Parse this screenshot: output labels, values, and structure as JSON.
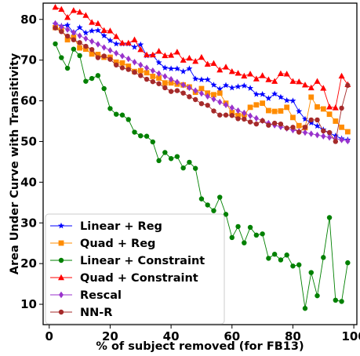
{
  "chart_data": {
    "type": "line",
    "title": "",
    "xlabel": "% of subject removed (for FB13)",
    "ylabel": "Area Under Curve with Transitivity",
    "xlim": [
      -2,
      101
    ],
    "ylim": [
      5,
      84
    ],
    "xticks": [
      "0",
      "20",
      "40",
      "60",
      "80",
      "100"
    ],
    "xtick_values": [
      0,
      20,
      40,
      60,
      80,
      100
    ],
    "yticks": [
      "10",
      "20",
      "30",
      "40",
      "50",
      "60",
      "70",
      "80"
    ],
    "ytick_values": [
      10,
      20,
      30,
      40,
      50,
      60,
      70,
      80
    ],
    "grid": false,
    "legend_position": "lower-left",
    "x": [
      2,
      4,
      6,
      8,
      10,
      12,
      14,
      16,
      18,
      20,
      22,
      24,
      26,
      28,
      30,
      32,
      34,
      36,
      38,
      40,
      42,
      44,
      46,
      48,
      50,
      52,
      54,
      56,
      58,
      60,
      62,
      64,
      66,
      68,
      70,
      72,
      74,
      76,
      78,
      80,
      82,
      84,
      86,
      88,
      90,
      92,
      94,
      96,
      98
    ],
    "series": [
      {
        "name": "Linear + Reg",
        "color": "#0000ff",
        "marker": "star",
        "values": [
          78.9,
          78.4,
          78.6,
          76.7,
          78.0,
          76.7,
          77.2,
          77.3,
          76.0,
          74.8,
          74.0,
          74.0,
          74.0,
          73.2,
          73.8,
          71.1,
          71.2,
          69.4,
          68.1,
          67.9,
          67.9,
          67.2,
          67.9,
          65.4,
          65.2,
          65.2,
          63.9,
          62.9,
          63.8,
          63.2,
          63.5,
          63.7,
          63.1,
          61.6,
          61.6,
          60.6,
          61.7,
          60.9,
          60.1,
          60.0,
          57.4,
          55.5,
          54.6,
          53.8,
          52.9,
          52.1,
          51.4,
          50.7,
          50.4
        ]
      },
      {
        "name": "Quad + Reg",
        "color": "#ff8c00",
        "marker": "square",
        "values": [
          78.0,
          77.5,
          75.0,
          75.6,
          73.0,
          72.7,
          71.5,
          71.4,
          70.7,
          70.7,
          69.5,
          69.3,
          68.5,
          67.2,
          67.4,
          66.9,
          66.0,
          65.6,
          64.4,
          64.4,
          64.1,
          63.9,
          63.4,
          62.1,
          63.0,
          61.9,
          61.5,
          61.9,
          59.4,
          57.1,
          56.4,
          56.6,
          58.4,
          59.0,
          59.4,
          57.6,
          57.4,
          57.5,
          58.4,
          55.9,
          53.9,
          53.4,
          60.9,
          58.5,
          58.0,
          56.7,
          55.0,
          53.5,
          52.4
        ]
      },
      {
        "name": "Linear + Constraint",
        "color": "#008000",
        "marker": "circle",
        "values": [
          74.0,
          70.6,
          68.0,
          72.7,
          71.1,
          64.8,
          65.5,
          66.2,
          63.0,
          58.1,
          56.7,
          56.5,
          55.4,
          52.3,
          51.4,
          51.3,
          49.9,
          45.3,
          47.3,
          45.8,
          46.3,
          43.5,
          44.9,
          43.4,
          35.9,
          34.4,
          33.0,
          36.3,
          32.1,
          26.4,
          29.1,
          25.1,
          28.9,
          27.0,
          27.3,
          21.3,
          22.3,
          20.9,
          22.1,
          19.4,
          19.7,
          9.0,
          17.8,
          12.1,
          21.5,
          31.3,
          11.0,
          10.7,
          20.2
        ]
      },
      {
        "name": "Quad + Constraint",
        "color": "#ff0000",
        "marker": "triangle",
        "values": [
          83.0,
          82.5,
          80.5,
          82.2,
          81.8,
          81.0,
          79.3,
          79.0,
          77.3,
          77.2,
          75.8,
          74.2,
          74.2,
          75.0,
          72.6,
          71.3,
          71.3,
          72.2,
          71.1,
          71.2,
          72.0,
          70.0,
          70.5,
          69.7,
          70.7,
          69.0,
          69.2,
          67.6,
          68.3,
          67.2,
          66.8,
          66.1,
          66.6,
          65.4,
          66.2,
          65.2,
          64.8,
          66.7,
          66.6,
          64.8,
          64.7,
          63.9,
          63.2,
          64.8,
          63.1,
          58.5,
          58.3,
          66.1,
          64.0
        ]
      },
      {
        "name": "Rescal",
        "color": "#9932cc",
        "marker": "diamond",
        "values": [
          79.0,
          78.2,
          77.5,
          76.8,
          76.0,
          75.3,
          74.6,
          73.9,
          73.1,
          72.4,
          71.7,
          71.0,
          70.3,
          69.5,
          68.8,
          68.1,
          67.4,
          66.7,
          66.0,
          65.3,
          64.6,
          63.9,
          63.2,
          62.5,
          61.8,
          61.1,
          60.4,
          59.7,
          59.0,
          58.3,
          57.6,
          57.0,
          56.3,
          55.7,
          55.1,
          54.5,
          54.0,
          53.6,
          53.2,
          52.8,
          52.5,
          52.2,
          51.9,
          51.6,
          51.3,
          51.0,
          50.7,
          50.4,
          50.1
        ]
      },
      {
        "name": "NN-R",
        "color": "#a52a2a",
        "marker": "circle",
        "values": [
          77.9,
          77.0,
          75.9,
          75.0,
          74.3,
          73.4,
          72.6,
          70.6,
          71.0,
          70.2,
          68.8,
          68.1,
          67.7,
          67.0,
          66.2,
          65.3,
          64.7,
          64.2,
          63.2,
          62.3,
          62.5,
          61.9,
          61.0,
          60.3,
          59.3,
          58.9,
          57.5,
          56.5,
          56.5,
          56.4,
          55.6,
          55.5,
          54.8,
          54.3,
          55.1,
          54.0,
          54.5,
          54.3,
          53.3,
          53.5,
          52.3,
          53.5,
          55.3,
          55.3,
          52.6,
          52.2,
          50.0,
          58.2,
          63.8
        ]
      }
    ]
  }
}
